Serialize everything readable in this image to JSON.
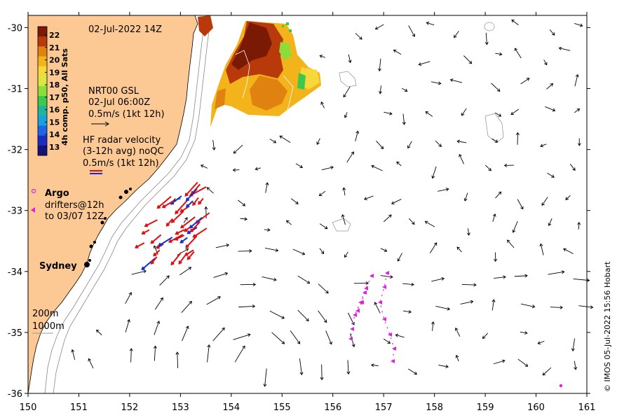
{
  "map": {
    "date_label": "02-Jul-2022 14Z",
    "lon_ticks": [
      "150",
      "151",
      "152",
      "153",
      "154",
      "155",
      "156",
      "157",
      "158",
      "159",
      "160",
      "161"
    ],
    "lat_ticks": [
      "-30",
      "-31",
      "-32",
      "-33",
      "-34",
      "-35",
      "-36"
    ],
    "lon_range": [
      150,
      161
    ],
    "lat_range": [
      -36,
      -29.8
    ],
    "colorbar": {
      "label": "4h comp. p50, All Sats",
      "ticks": [
        "22",
        "21",
        "20",
        "19",
        "18",
        "17",
        "16",
        "15",
        "14",
        "13"
      ],
      "colors": [
        "#7a1a05",
        "#b83a0a",
        "#e08210",
        "#f2b41a",
        "#f6d83a",
        "#d8e840",
        "#8cdc3a",
        "#3cc84c",
        "#20b4a0",
        "#18a0e0",
        "#2064e8",
        "#1c2cc0",
        "#141478"
      ]
    },
    "gsl_legend": {
      "line1": "NRT00 GSL",
      "line2": "02-Jul 06:00Z",
      "line3": "0.5m/s (1kt 12h)"
    },
    "hf_legend": {
      "line1": "HF radar velocity",
      "line2": "(3-12h avg) noQC",
      "line3": "0.5m/s (1kt 12h)"
    },
    "argo_legend": {
      "label": "Argo",
      "line2": "drifters@12h",
      "line3": "to 03/07 12Z"
    },
    "city": "Sydney",
    "isobaths": {
      "line1": "200m",
      "line2": "1000m"
    },
    "credit": "© IMOS 05-Jul-2022 15:56 Hobart",
    "colors": {
      "land": "#fcc894",
      "hf_red": "#e01010",
      "hf_blue": "#1030d0",
      "drifter": "#e020e0"
    }
  }
}
